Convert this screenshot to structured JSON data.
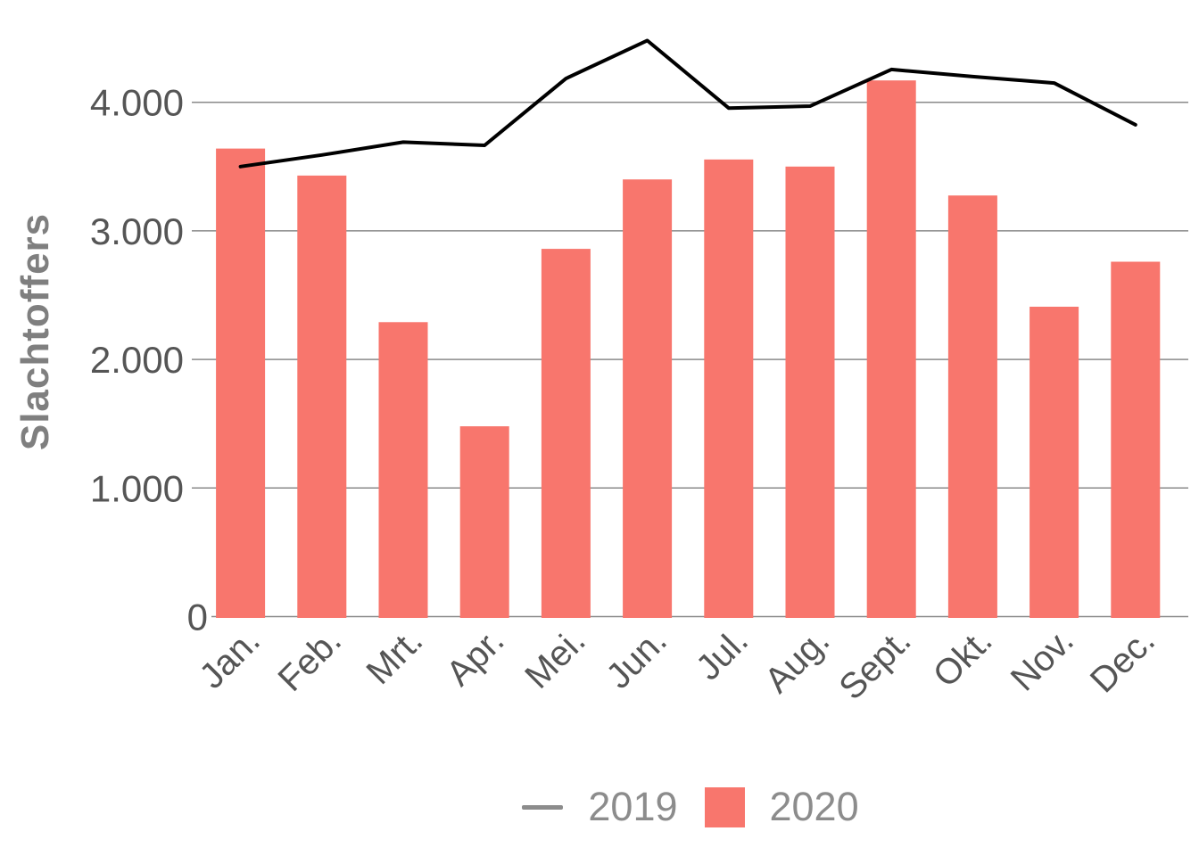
{
  "chart_data": {
    "type": "combo",
    "title": "",
    "ylabel": "Slachtoffers",
    "categories": [
      "Jan.",
      "Feb.",
      "Mrt.",
      "Apr.",
      "Mei.",
      "Jun.",
      "Jul.",
      "Aug.",
      "Sept.",
      "Okt.",
      "Nov.",
      "Dec."
    ],
    "series": [
      {
        "name": "2019",
        "type": "line",
        "values": [
          3500,
          3590,
          3690,
          3665,
          4185,
          4480,
          3955,
          3970,
          4255,
          4200,
          4150,
          3825
        ]
      },
      {
        "name": "2020",
        "type": "bar",
        "values": [
          3640,
          3430,
          2290,
          1480,
          2860,
          3400,
          3555,
          3500,
          4170,
          3275,
          2410,
          2760
        ]
      }
    ],
    "yticks": [
      {
        "value": 0,
        "label": "0"
      },
      {
        "value": 1000,
        "label": "1.000"
      },
      {
        "value": 2000,
        "label": "2.000"
      },
      {
        "value": 3000,
        "label": "3.000"
      },
      {
        "value": 4000,
        "label": "4.000"
      }
    ],
    "ylim": [
      0,
      4800
    ],
    "grid": true,
    "legend_position": "bottom",
    "colors": {
      "bar": "#F8766D",
      "line": "#000000",
      "grid": "#8a8a8a",
      "tick_text": "#555555",
      "axis_title": "#7f7f7f",
      "legend_text": "#8c8c8c"
    }
  }
}
